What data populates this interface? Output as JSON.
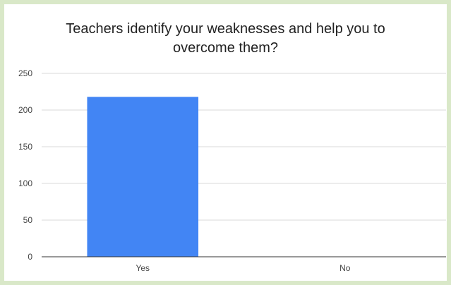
{
  "chart_data": {
    "type": "bar",
    "title_line1": "Teachers identify your weaknesses and help you to",
    "title_line2": "overcome them?",
    "categories": [
      "Yes",
      "No"
    ],
    "values": [
      218,
      0
    ],
    "ylim": [
      0,
      250
    ],
    "yticks": [
      0,
      50,
      100,
      150,
      200,
      250
    ],
    "ytick_labels": [
      "0",
      "50",
      "100",
      "150",
      "200",
      "250"
    ],
    "grid": true,
    "legend": "none",
    "colors": {
      "bar": "#4285f4",
      "grid": "#d9d9d9",
      "axis": "#333333"
    }
  }
}
